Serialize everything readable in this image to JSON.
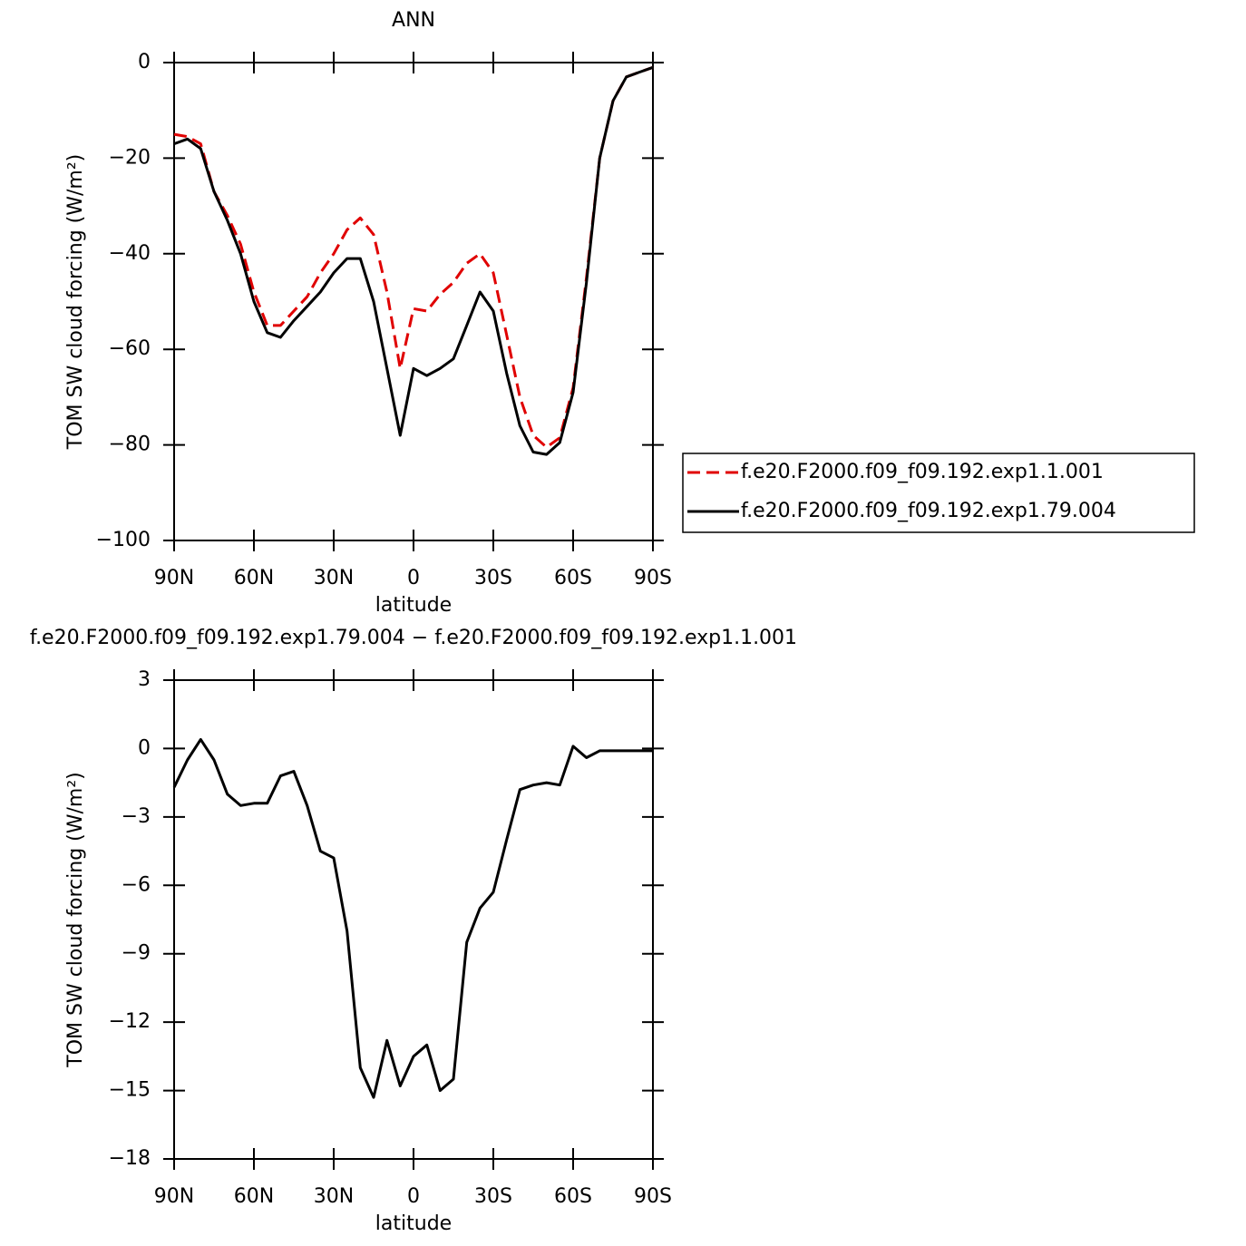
{
  "chart_data": [
    {
      "type": "line",
      "title": "ANN",
      "xlabel": "latitude",
      "ylabel": "TOM SW cloud forcing (W/m²)",
      "x": [
        90,
        85,
        80,
        75,
        70,
        65,
        60,
        55,
        50,
        45,
        40,
        35,
        30,
        25,
        20,
        15,
        10,
        5,
        0,
        -5,
        -10,
        -15,
        -20,
        -25,
        -30,
        -35,
        -40,
        -45,
        -50,
        -55,
        -60,
        -65,
        -70,
        -75,
        -80,
        -85,
        -90
      ],
      "series": [
        {
          "name": "f.e20.F2000.f09_f09.192.exp1.1.001",
          "color": "#e00000",
          "dashed": true,
          "values": [
            -15,
            -15.5,
            -17,
            -27,
            -32,
            -38,
            -48,
            -55,
            -55,
            -52,
            -49,
            -44,
            -40,
            -35,
            -32.5,
            -36,
            -48,
            -64,
            -51.5,
            -52,
            -48.5,
            -46,
            -42,
            -40,
            -44,
            -57,
            -70,
            -78,
            -80.5,
            -78.5,
            -68,
            -45,
            -20,
            -8,
            -3,
            -2,
            -1
          ]
        },
        {
          "name": "f.e20.F2000.f09_f09.192.exp1.79.004",
          "color": "#000000",
          "dashed": false,
          "values": [
            -17,
            -16,
            -18,
            -27,
            -33,
            -40,
            -50,
            -56.5,
            -57.5,
            -54,
            -51,
            -48,
            -44,
            -41,
            -41,
            -50,
            -64,
            -78,
            -64,
            -65.5,
            -64,
            -62,
            -55,
            -48,
            -52,
            -65,
            -76,
            -81.5,
            -82,
            -79.5,
            -69,
            -46,
            -20,
            -8,
            -3,
            -2,
            -1
          ]
        }
      ],
      "xlim": [
        90,
        -90
      ],
      "xticks": [
        {
          "value": 90,
          "label": "90N"
        },
        {
          "value": 60,
          "label": "60N"
        },
        {
          "value": 30,
          "label": "30N"
        },
        0,
        {
          "value": -30,
          "label": "30S"
        },
        {
          "value": -60,
          "label": "60S"
        },
        {
          "value": -90,
          "label": "90S"
        }
      ],
      "ylim": [
        -100,
        0
      ],
      "yticks": [
        {
          "value": -100,
          "label": "−100"
        },
        {
          "value": -80,
          "label": "−80"
        },
        {
          "value": -60,
          "label": "−60"
        },
        {
          "value": -40,
          "label": "−40"
        },
        {
          "value": -20,
          "label": "−20"
        },
        0
      ],
      "legend": "right"
    },
    {
      "type": "line",
      "title": "f.e20.F2000.f09_f09.192.exp1.79.004 − f.e20.F2000.f09_f09.192.exp1.1.001",
      "xlabel": "latitude",
      "ylabel": "TOM SW cloud forcing (W/m²)",
      "x": [
        90,
        85,
        80,
        75,
        70,
        65,
        60,
        55,
        50,
        45,
        40,
        35,
        30,
        25,
        20,
        15,
        10,
        5,
        0,
        -5,
        -10,
        -15,
        -20,
        -25,
        -30,
        -35,
        -40,
        -45,
        -50,
        -55,
        -60,
        -65,
        -70,
        -75,
        -80,
        -85,
        -90
      ],
      "series": [
        {
          "color": "#000000",
          "dashed": false,
          "values": [
            -1.7,
            -0.5,
            0.4,
            -0.5,
            -2,
            -2.5,
            -2.4,
            -2.4,
            -1.2,
            -1,
            -2.5,
            -4.5,
            -4.8,
            -8,
            -14,
            -15.3,
            -12.8,
            -14.8,
            -13.5,
            -13,
            -15,
            -14.5,
            -8.5,
            -7,
            -6.3,
            -4,
            -1.8,
            -1.6,
            -1.5,
            -1.6,
            0.1,
            -0.4,
            -0.1,
            -0.1,
            -0.1,
            -0.1,
            -0.1
          ]
        }
      ],
      "xlim": [
        90,
        -90
      ],
      "xticks": [
        {
          "value": 90,
          "label": "90N"
        },
        {
          "value": 60,
          "label": "60N"
        },
        {
          "value": 30,
          "label": "30N"
        },
        0,
        {
          "value": -30,
          "label": "30S"
        },
        {
          "value": -60,
          "label": "60S"
        },
        {
          "value": -90,
          "label": "90S"
        }
      ],
      "ylim": [
        -18,
        3
      ],
      "yticks": [
        {
          "value": -18,
          "label": "−18"
        },
        {
          "value": -15,
          "label": "−15"
        },
        {
          "value": -12,
          "label": "−12"
        },
        {
          "value": -9,
          "label": "−9"
        },
        {
          "value": -6,
          "label": "−6"
        },
        {
          "value": -3,
          "label": "−3"
        },
        0,
        3
      ]
    }
  ]
}
